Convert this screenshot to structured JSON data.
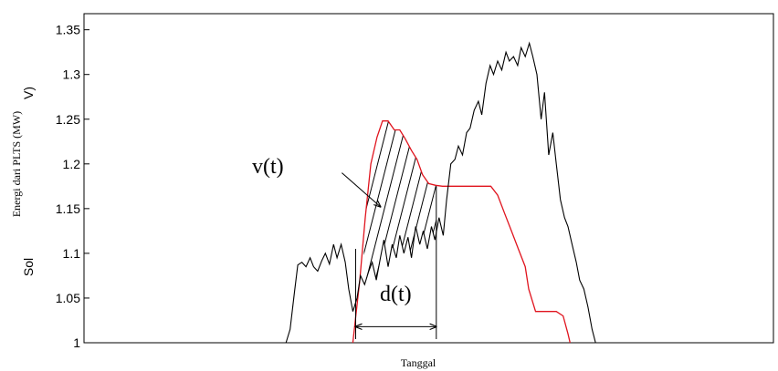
{
  "chart_data": {
    "type": "line",
    "title": "",
    "xlabel": "Tanggal",
    "ylabel": "Energi dari PLTS (MW)",
    "ylabel_overlap_fragments": [
      "Sol",
      "V)"
    ],
    "ylim": [
      1.0,
      1.35
    ],
    "yticks": [
      "1",
      "1.05",
      "1.1",
      "1.15",
      "1.2",
      "1.25",
      "1.3",
      "1.35"
    ],
    "xlim": [
      0,
      100
    ],
    "grid": false,
    "legend": "none",
    "annotations": {
      "area_label": "v(t)",
      "duration_label": "d(t)"
    },
    "colors": {
      "pv_series": "#000000",
      "limit_series": "#e0141e",
      "axes": "#000000"
    },
    "series": [
      {
        "color": "#000000",
        "x": [
          29.3,
          29.9,
          30.5,
          31.0,
          31.6,
          32.2,
          32.8,
          33.3,
          33.9,
          34.5,
          35.0,
          35.6,
          36.2,
          36.7,
          37.3,
          37.9,
          38.4,
          39.0,
          39.6,
          40.1,
          40.7,
          41.3,
          41.8,
          42.4,
          43.0,
          43.5,
          44.1,
          44.7,
          45.3,
          45.8,
          46.4,
          47.0,
          47.5,
          48.1,
          48.7,
          49.2,
          49.8,
          50.4,
          50.9,
          51.5,
          52.1,
          52.6,
          53.2,
          53.8,
          54.3,
          54.9,
          55.5,
          56.0,
          56.6,
          57.2,
          57.7,
          58.3,
          58.9,
          59.4,
          60.0,
          60.6,
          61.2,
          61.7,
          62.3,
          62.9,
          63.4,
          64.0,
          64.6,
          65.1,
          65.7,
          66.3,
          66.8,
          67.4,
          68.0,
          68.5,
          69.1,
          69.7,
          70.2,
          70.8,
          71.4,
          71.9,
          72.5,
          73.1,
          73.7,
          74.2
        ],
        "y": [
          1.0,
          1.015,
          1.055,
          1.087,
          1.09,
          1.085,
          1.095,
          1.085,
          1.08,
          1.092,
          1.1,
          1.088,
          1.11,
          1.095,
          1.11,
          1.09,
          1.06,
          1.035,
          1.05,
          1.075,
          1.065,
          1.08,
          1.09,
          1.07,
          1.095,
          1.115,
          1.085,
          1.11,
          1.095,
          1.12,
          1.1,
          1.118,
          1.095,
          1.13,
          1.11,
          1.125,
          1.105,
          1.13,
          1.115,
          1.14,
          1.12,
          1.16,
          1.2,
          1.205,
          1.22,
          1.21,
          1.235,
          1.24,
          1.26,
          1.27,
          1.255,
          1.29,
          1.31,
          1.3,
          1.315,
          1.305,
          1.325,
          1.315,
          1.32,
          1.31,
          1.33,
          1.32,
          1.335,
          1.32,
          1.3,
          1.25,
          1.28,
          1.21,
          1.235,
          1.2,
          1.16,
          1.14,
          1.13,
          1.11,
          1.09,
          1.07,
          1.06,
          1.04,
          1.015,
          1.0
        ]
      },
      {
        "color": "#e0141e",
        "x": [
          39.0,
          40.0,
          40.8,
          41.6,
          42.5,
          43.3,
          44.1,
          45.0,
          45.8,
          46.6,
          47.5,
          48.3,
          49.1,
          50.0,
          51.0,
          52.0,
          53.0,
          54.5,
          56.0,
          57.5,
          59.0,
          60.0,
          61.0,
          62.0,
          63.0,
          64.0,
          64.5,
          65.5,
          67.0,
          68.5,
          69.5,
          70.2,
          70.5
        ],
        "y": [
          1.0,
          1.07,
          1.14,
          1.2,
          1.23,
          1.248,
          1.248,
          1.238,
          1.238,
          1.228,
          1.215,
          1.205,
          1.188,
          1.178,
          1.176,
          1.175,
          1.175,
          1.175,
          1.175,
          1.175,
          1.175,
          1.165,
          1.145,
          1.125,
          1.105,
          1.085,
          1.06,
          1.035,
          1.035,
          1.035,
          1.03,
          1.01,
          1.0
        ]
      }
    ]
  }
}
